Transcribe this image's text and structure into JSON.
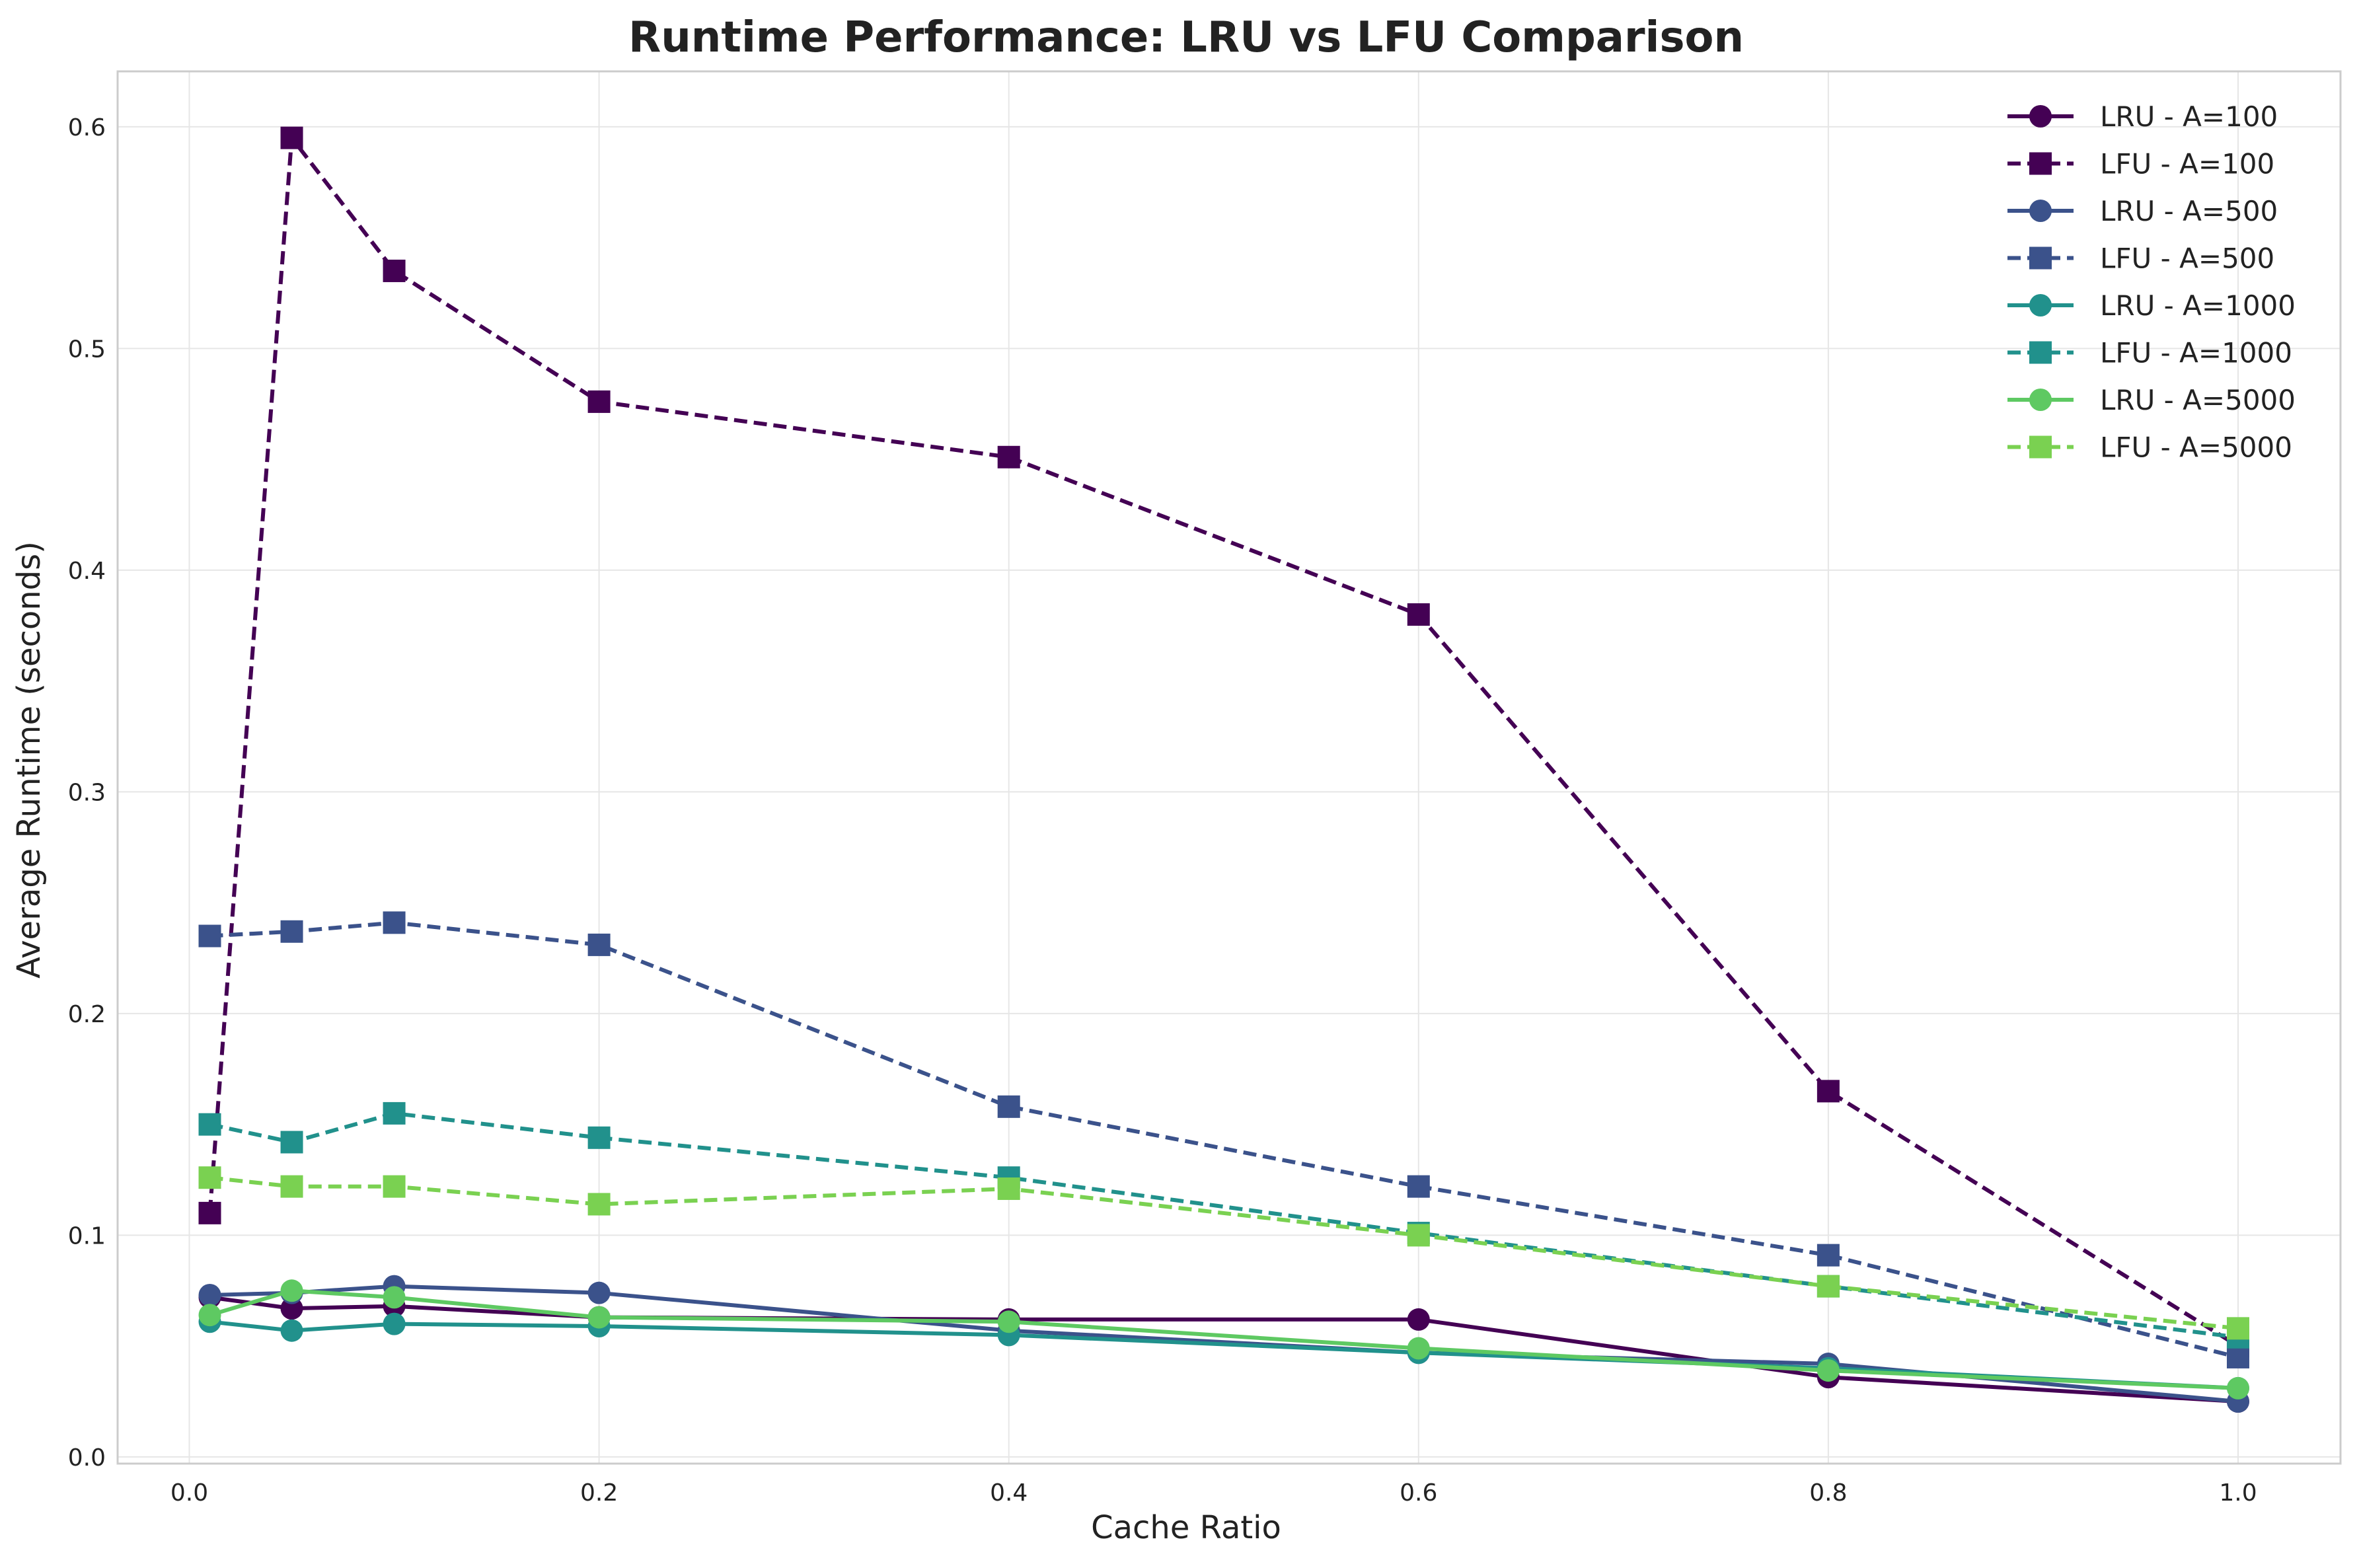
{
  "chart_data": {
    "type": "line",
    "title": "Runtime Performance: LRU vs LFU Comparison",
    "xlabel": "Cache Ratio",
    "ylabel": "Average Runtime (seconds)",
    "xlim": [
      -0.035,
      1.05
    ],
    "ylim": [
      -0.003,
      0.625
    ],
    "xticks": [
      0.0,
      0.2,
      0.4,
      0.6,
      0.8,
      1.0
    ],
    "xtick_labels": [
      "0.0",
      "0.2",
      "0.4",
      "0.6",
      "0.8",
      "1.0"
    ],
    "yticks": [
      0.0,
      0.1,
      0.2,
      0.3,
      0.4,
      0.5,
      0.6
    ],
    "ytick_labels": [
      "0.0",
      "0.1",
      "0.2",
      "0.3",
      "0.4",
      "0.5",
      "0.6"
    ],
    "grid": true,
    "legend_position": "top-right",
    "x": [
      0.01,
      0.05,
      0.1,
      0.2,
      0.4,
      0.6,
      0.8,
      1.0
    ],
    "series": [
      {
        "name": "LRU - A=100",
        "color": "#440154",
        "marker": "circle",
        "dash": "solid",
        "values": [
          0.072,
          0.067,
          0.068,
          0.063,
          0.062,
          0.062,
          0.036,
          0.025
        ]
      },
      {
        "name": "LFU - A=100",
        "color": "#440154",
        "marker": "square",
        "dash": "dashed",
        "values": [
          0.11,
          0.595,
          0.535,
          0.476,
          0.451,
          0.38,
          0.165,
          0.05
        ]
      },
      {
        "name": "LRU - A=500",
        "color": "#3b528b",
        "marker": "circle",
        "dash": "solid",
        "values": [
          0.073,
          0.074,
          0.077,
          0.074,
          0.057,
          0.047,
          0.042,
          0.025
        ]
      },
      {
        "name": "LFU - A=500",
        "color": "#3b528b",
        "marker": "square",
        "dash": "dashed",
        "values": [
          0.235,
          0.237,
          0.241,
          0.231,
          0.158,
          0.122,
          0.091,
          0.045
        ]
      },
      {
        "name": "LRU - A=1000",
        "color": "#21918c",
        "marker": "circle",
        "dash": "solid",
        "values": [
          0.061,
          0.057,
          0.06,
          0.059,
          0.055,
          0.047,
          0.04,
          0.031
        ]
      },
      {
        "name": "LFU - A=1000",
        "color": "#21918c",
        "marker": "square",
        "dash": "dashed",
        "values": [
          0.15,
          0.142,
          0.155,
          0.144,
          0.126,
          0.101,
          0.077,
          0.054
        ]
      },
      {
        "name": "LRU - A=5000",
        "color": "#5ec962",
        "marker": "circle",
        "dash": "solid",
        "values": [
          0.064,
          0.075,
          0.072,
          0.063,
          0.061,
          0.049,
          0.039,
          0.031
        ]
      },
      {
        "name": "LFU - A=5000",
        "color": "#7ad151",
        "marker": "square",
        "dash": "dashed",
        "values": [
          0.126,
          0.122,
          0.122,
          0.114,
          0.121,
          0.1,
          0.077,
          0.058
        ]
      }
    ]
  }
}
